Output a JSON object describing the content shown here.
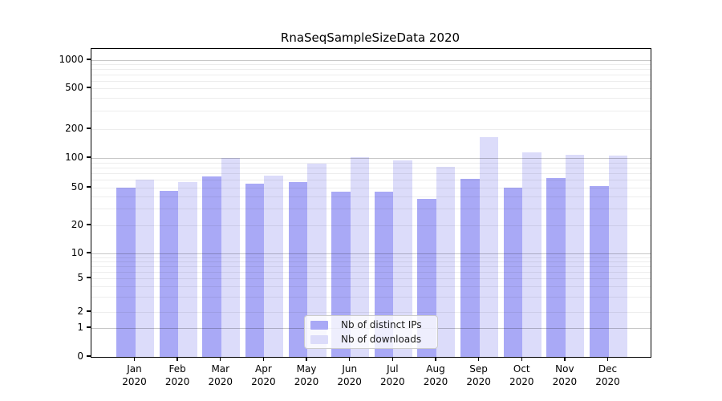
{
  "title": "RnaSeqSampleSizeData 2020",
  "legend": {
    "items": [
      {
        "label": "Nb of distinct IPs",
        "color": "#a9a9f6"
      },
      {
        "label": "Nb of downloads",
        "color": "#dcdcfa"
      }
    ]
  },
  "chart_data": {
    "type": "bar",
    "title": "RnaSeqSampleSizeData 2020",
    "categories": [
      "Jan 2020",
      "Feb 2020",
      "Mar 2020",
      "Apr 2020",
      "May 2020",
      "Jun 2020",
      "Jul 2020",
      "Aug 2020",
      "Sep 2020",
      "Oct 2020",
      "Nov 2020",
      "Dec 2020"
    ],
    "x_tick_line1": [
      "Jan",
      "Feb",
      "Mar",
      "Apr",
      "May",
      "Jun",
      "Jul",
      "Aug",
      "Sep",
      "Oct",
      "Nov",
      "Dec"
    ],
    "x_tick_line2": [
      "2020",
      "2020",
      "2020",
      "2020",
      "2020",
      "2020",
      "2020",
      "2020",
      "2020",
      "2020",
      "2020",
      "2020"
    ],
    "series": [
      {
        "name": "Nb of distinct IPs",
        "color": "#a9a9f6",
        "values": [
          50,
          46,
          65,
          55,
          57,
          45,
          45,
          38,
          62,
          50,
          63,
          52
        ]
      },
      {
        "name": "Nb of downloads",
        "color": "#dcdcfa",
        "values": [
          60,
          57,
          100,
          66,
          88,
          101,
          95,
          82,
          165,
          115,
          109,
          105
        ]
      }
    ],
    "xlabel": "",
    "ylabel": "",
    "yscale": "symlog-like",
    "y_tick_values": [
      0,
      1,
      2,
      5,
      10,
      20,
      50,
      100,
      200,
      500,
      1000
    ],
    "y_tick_labels": [
      "0",
      "1",
      "2",
      "5",
      "10",
      "20",
      "50",
      "100",
      "200",
      "500",
      "1000"
    ],
    "ylim": [
      0,
      1300
    ],
    "grid": "on",
    "legend_position": "lower-center"
  }
}
